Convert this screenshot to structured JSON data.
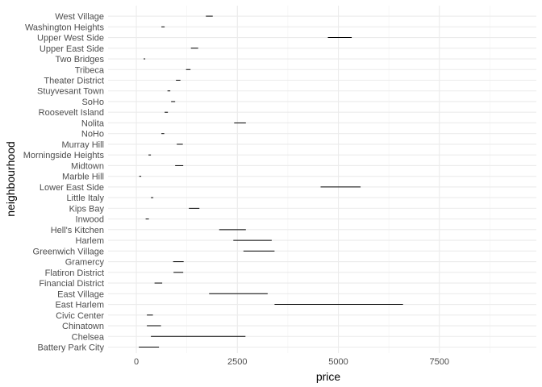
{
  "chart_data": {
    "type": "range",
    "title": "",
    "xlabel": "price",
    "ylabel": "neighbourhood",
    "xlim": [
      -700,
      9900
    ],
    "x_ticks": [
      0,
      2500,
      5000,
      7500
    ],
    "x_tick_labels": [
      "0",
      "2500",
      "5000",
      "7500"
    ],
    "grid": true,
    "categories": [
      "Battery Park City",
      "Chelsea",
      "Chinatown",
      "Civic Center",
      "East Harlem",
      "East Village",
      "Financial District",
      "Flatiron District",
      "Gramercy",
      "Greenwich Village",
      "Harlem",
      "Hell's Kitchen",
      "Inwood",
      "Kips Bay",
      "Little Italy",
      "Lower East Side",
      "Marble Hill",
      "Midtown",
      "Morningside Heights",
      "Murray Hill",
      "NoHo",
      "Nolita",
      "Roosevelt Island",
      "SoHo",
      "Stuyvesant Town",
      "Theater District",
      "Tribeca",
      "Two Bridges",
      "Upper East Side",
      "Upper West Side",
      "Washington Heights",
      "West Village"
    ],
    "ranges": [
      [
        60,
        560
      ],
      [
        360,
        2700
      ],
      [
        260,
        610
      ],
      [
        260,
        410
      ],
      [
        3420,
        6600
      ],
      [
        1800,
        3250
      ],
      [
        450,
        640
      ],
      [
        920,
        1160
      ],
      [
        910,
        1170
      ],
      [
        2650,
        3420
      ],
      [
        2400,
        3350
      ],
      [
        2050,
        2710
      ],
      [
        230,
        310
      ],
      [
        1300,
        1560
      ],
      [
        360,
        420
      ],
      [
        4560,
        5550
      ],
      [
        70,
        120
      ],
      [
        960,
        1160
      ],
      [
        300,
        360
      ],
      [
        1000,
        1150
      ],
      [
        620,
        690
      ],
      [
        2420,
        2710
      ],
      [
        700,
        780
      ],
      [
        860,
        960
      ],
      [
        770,
        840
      ],
      [
        980,
        1090
      ],
      [
        1230,
        1340
      ],
      [
        180,
        220
      ],
      [
        1350,
        1530
      ],
      [
        4740,
        5330
      ],
      [
        620,
        700
      ],
      [
        1720,
        1890
      ]
    ]
  }
}
